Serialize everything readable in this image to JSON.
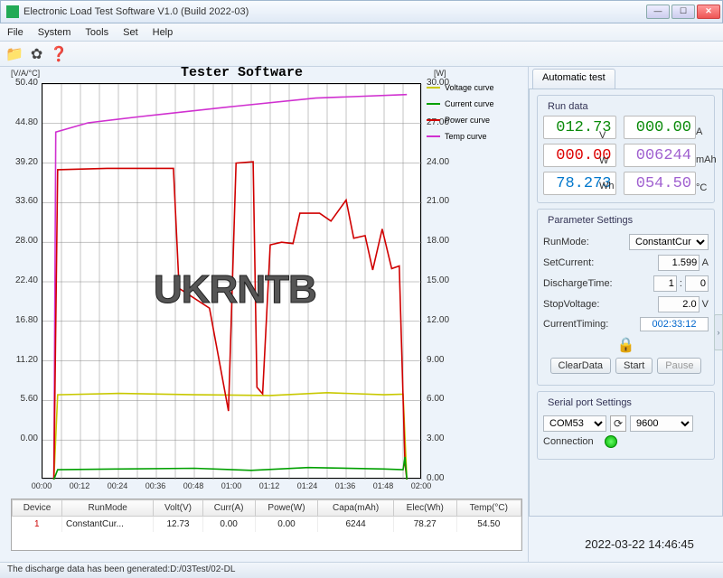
{
  "window": {
    "title": "Electronic Load Test Software V1.0 (Build 2022-03)"
  },
  "menu": {
    "file": "File",
    "system": "System",
    "tools": "Tools",
    "set": "Set",
    "help": "Help"
  },
  "toolbar_icons": {
    "folder": "📁",
    "gear": "✿",
    "help": "❓"
  },
  "chart": {
    "title": "Tester Software",
    "axis_left_label": "[V/A/°C]",
    "axis_right_label": "[W]",
    "watermark": "UKRNTB",
    "left_ticks": [
      "50.40",
      "44.80",
      "39.20",
      "33.60",
      "28.00",
      "22.40",
      "16.80",
      "11.20",
      "5.60",
      "0.00"
    ],
    "right_ticks": [
      "30.00",
      "27.00",
      "24.00",
      "21.00",
      "18.00",
      "15.00",
      "12.00",
      "9.00",
      "6.00",
      "3.00",
      "0.00"
    ],
    "x_ticks": [
      "00:00",
      "00:12",
      "00:24",
      "00:36",
      "00:48",
      "01:00",
      "01:12",
      "01:24",
      "01:36",
      "01:48",
      "02:00"
    ],
    "legend": [
      {
        "label": "Voltage curve",
        "color": "#c8c800"
      },
      {
        "label": "Current curve",
        "color": "#00a000"
      },
      {
        "label": "Power curve",
        "color": "#d00000"
      },
      {
        "label": "Temp curve",
        "color": "#d030d0"
      }
    ],
    "series": {
      "voltage": {
        "color": "#c8c800",
        "y_scale": "left",
        "points": [
          [
            0.03,
            0
          ],
          [
            0.04,
            12
          ],
          [
            0.2,
            12.2
          ],
          [
            0.4,
            12.0
          ],
          [
            0.6,
            11.9
          ],
          [
            0.75,
            12.3
          ],
          [
            0.9,
            12.0
          ],
          [
            0.95,
            12.1
          ],
          [
            0.96,
            0
          ]
        ]
      },
      "current": {
        "color": "#00a000",
        "y_scale": "left",
        "points": [
          [
            0.03,
            0
          ],
          [
            0.04,
            1.4
          ],
          [
            0.2,
            1.5
          ],
          [
            0.4,
            1.6
          ],
          [
            0.55,
            1.3
          ],
          [
            0.7,
            1.7
          ],
          [
            0.9,
            1.5
          ],
          [
            0.95,
            1.4
          ],
          [
            0.955,
            3.2
          ],
          [
            0.96,
            0
          ]
        ]
      },
      "power": {
        "color": "#d00000",
        "y_scale": "right",
        "points": [
          [
            0.03,
            0
          ],
          [
            0.04,
            23.5
          ],
          [
            0.17,
            23.6
          ],
          [
            0.345,
            23.6
          ],
          [
            0.36,
            14.5
          ],
          [
            0.44,
            13.0
          ],
          [
            0.49,
            5.2
          ],
          [
            0.51,
            24.0
          ],
          [
            0.555,
            24.1
          ],
          [
            0.565,
            7.0
          ],
          [
            0.58,
            6.5
          ],
          [
            0.6,
            17.8
          ],
          [
            0.63,
            18.0
          ],
          [
            0.66,
            17.9
          ],
          [
            0.678,
            20.2
          ],
          [
            0.73,
            20.2
          ],
          [
            0.76,
            19.6
          ],
          [
            0.8,
            21.2
          ],
          [
            0.82,
            18.3
          ],
          [
            0.85,
            18.5
          ],
          [
            0.87,
            15.9
          ],
          [
            0.895,
            19.0
          ],
          [
            0.92,
            16.0
          ],
          [
            0.94,
            16.2
          ],
          [
            0.955,
            1.2
          ],
          [
            0.96,
            0
          ]
        ]
      },
      "temp": {
        "color": "#d030d0",
        "y_scale": "left",
        "points": [
          [
            0.03,
            0
          ],
          [
            0.035,
            49.2
          ],
          [
            0.12,
            50.5
          ],
          [
            0.26,
            51.4
          ],
          [
            0.5,
            52.8
          ],
          [
            0.72,
            54.0
          ],
          [
            0.96,
            54.5
          ]
        ]
      }
    },
    "left_max": 56.0,
    "right_max": 30.0
  },
  "table": {
    "headers": [
      "Device",
      "RunMode",
      "Volt(V)",
      "Curr(A)",
      "Powe(W)",
      "Capa(mAh)",
      "Elec(Wh)",
      "Temp(°C)"
    ],
    "row": {
      "device": "1",
      "mode": "ConstantCur...",
      "volt": "12.73",
      "curr": "0.00",
      "pow": "0.00",
      "capa": "6244",
      "elec": "78.27",
      "temp": "54.50"
    }
  },
  "side": {
    "tab": "Automatic test",
    "run_data_title": "Run data",
    "volt": "012.73",
    "volt_u": "V",
    "curr": "000.00",
    "curr_u": "A",
    "pow": "000.00",
    "pow_u": "W",
    "capa": "006244",
    "capa_u": "mAh",
    "elec": "78.273",
    "elec_u": "Wh",
    "temp": "054.50",
    "temp_u": "°C",
    "param_title": "Parameter Settings",
    "runmode_lbl": "RunMode:",
    "runmode_val": "ConstantCurr",
    "setcurrent_lbl": "SetCurrent:",
    "setcurrent_val": "1.599",
    "setcurrent_u": "A",
    "discharge_lbl": "DischargeTime:",
    "discharge_h": "1",
    "discharge_m": "0",
    "stopv_lbl": "StopVoltage:",
    "stopv_val": "2.0",
    "stopv_u": "V",
    "timing_lbl": "CurrentTiming:",
    "timing_val": "002:33:12",
    "btn_clear": "ClearData",
    "btn_start": "Start",
    "btn_pause": "Pause",
    "serial_title": "Serial port Settings",
    "com": "COM53",
    "baud": "9600",
    "conn_lbl": "Connection"
  },
  "timestamp": "2022-03-22 14:46:45",
  "status": "The discharge data has been generated:D:/03Test/02-DL"
}
